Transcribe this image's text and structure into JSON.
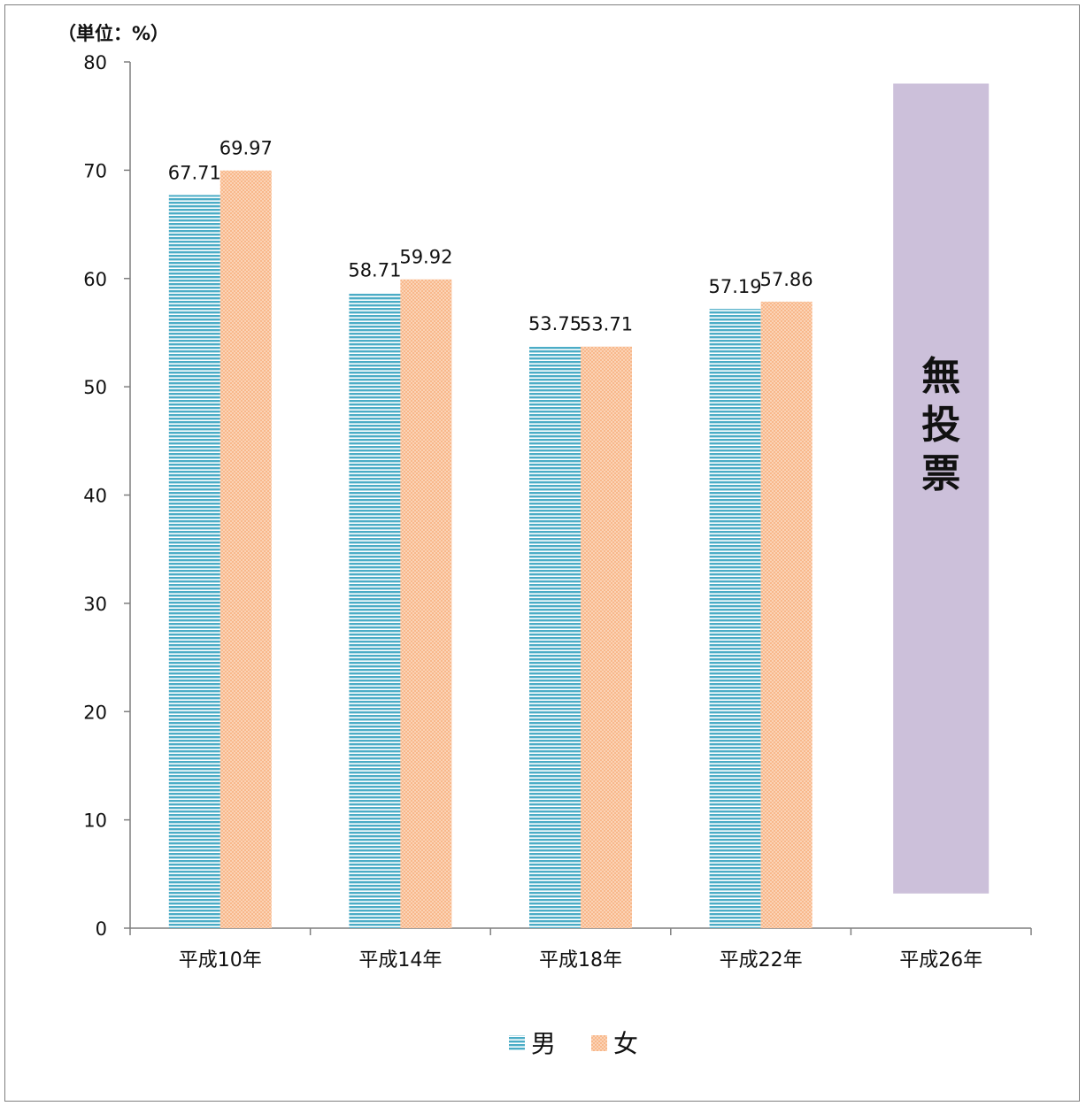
{
  "chart_data": {
    "type": "bar",
    "unit_label": "（単位：%）",
    "categories": [
      "平成10年",
      "平成14年",
      "平成18年",
      "平成22年",
      "平成26年"
    ],
    "series": [
      {
        "name": "男",
        "values": [
          67.71,
          58.71,
          53.75,
          57.19,
          null
        ],
        "color": "#4bacc6",
        "pattern": "horizontal-stripes"
      },
      {
        "name": "女",
        "values": [
          69.97,
          59.92,
          53.71,
          57.86,
          null
        ],
        "color": "#f9b88a",
        "pattern": "dots"
      }
    ],
    "value_labels": [
      [
        "67.71",
        "58.71",
        "53.75",
        "57.19",
        ""
      ],
      [
        "69.97",
        "59.92",
        "53.71",
        "57.86",
        ""
      ]
    ],
    "no_vote": {
      "category_index": 4,
      "text": "無投票",
      "color": "#ccc0da",
      "range": [
        3.2,
        78.0
      ]
    },
    "yticks": [
      "0",
      "10",
      "20",
      "30",
      "40",
      "50",
      "60",
      "70",
      "80"
    ],
    "ylim": [
      0,
      80
    ],
    "grid": false,
    "legend_position": "bottom"
  }
}
